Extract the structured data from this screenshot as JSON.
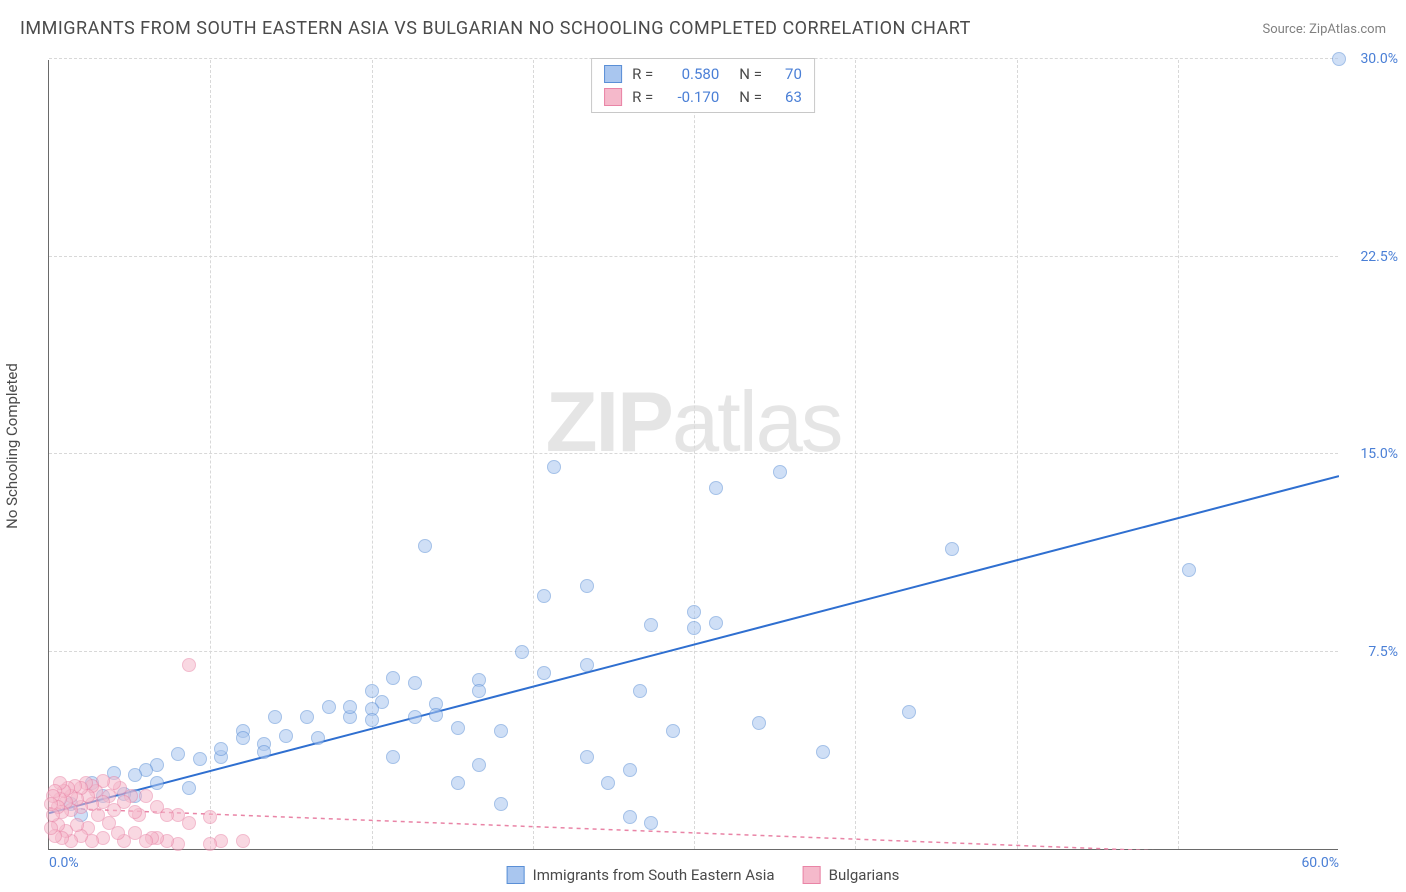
{
  "title": "IMMIGRANTS FROM SOUTH EASTERN ASIA VS BULGARIAN NO SCHOOLING COMPLETED CORRELATION CHART",
  "source_prefix": "Source: ",
  "source": "ZipAtlas.com",
  "watermark_a": "ZIP",
  "watermark_b": "atlas",
  "ylabel": "No Schooling Completed",
  "chart": {
    "type": "scatter",
    "xlim": [
      0,
      60
    ],
    "ylim": [
      0,
      30
    ],
    "xtick_step": 7.5,
    "ytick_step": 7.5,
    "xtick_labels": [
      "0.0%",
      "60.0%"
    ],
    "ytick_labels": [
      "7.5%",
      "15.0%",
      "22.5%",
      "30.0%"
    ],
    "grid_color": "#d8d8d8",
    "axis_color": "#6a6a6a",
    "background": "#ffffff",
    "marker_radius": 7,
    "marker_opacity": 0.55,
    "series": [
      {
        "id": "sea",
        "label": "Immigrants from South Eastern Asia",
        "fill": "#a9c6ef",
        "stroke": "#5a8fd6",
        "R": "0.580",
        "N": "70",
        "trend": {
          "color": "#2f6fd0",
          "dash": "none",
          "width": 2,
          "y_at_x0": 1.4,
          "y_at_x60": 14.2
        },
        "points": [
          [
            60,
            30
          ],
          [
            53,
            10.6
          ],
          [
            42,
            11.4
          ],
          [
            40,
            5.2
          ],
          [
            36,
            3.7
          ],
          [
            34,
            14.3
          ],
          [
            33,
            4.8
          ],
          [
            31,
            13.7
          ],
          [
            31,
            8.6
          ],
          [
            30,
            8.4
          ],
          [
            30,
            9.0
          ],
          [
            29,
            4.5
          ],
          [
            28,
            8.5
          ],
          [
            28,
            1.0
          ],
          [
            27.5,
            6.0
          ],
          [
            27,
            3.0
          ],
          [
            27,
            1.2
          ],
          [
            26,
            2.5
          ],
          [
            25,
            7.0
          ],
          [
            25,
            10
          ],
          [
            25,
            3.5
          ],
          [
            23.5,
            14.5
          ],
          [
            23,
            6.7
          ],
          [
            23,
            9.6
          ],
          [
            22,
            7.5
          ],
          [
            21,
            1.7
          ],
          [
            21,
            4.5
          ],
          [
            20,
            6.4
          ],
          [
            20,
            3.2
          ],
          [
            20,
            6.0
          ],
          [
            19,
            4.6
          ],
          [
            19,
            2.5
          ],
          [
            18,
            5.5
          ],
          [
            18,
            5.1
          ],
          [
            17.5,
            11.5
          ],
          [
            17,
            6.3
          ],
          [
            17,
            5.0
          ],
          [
            16,
            6.5
          ],
          [
            16,
            3.5
          ],
          [
            15.5,
            5.6
          ],
          [
            15,
            5.3
          ],
          [
            15,
            4.9
          ],
          [
            15,
            6.0
          ],
          [
            14,
            5.0
          ],
          [
            14,
            5.4
          ],
          [
            13,
            5.4
          ],
          [
            12.5,
            4.2
          ],
          [
            12,
            5.0
          ],
          [
            11,
            4.3
          ],
          [
            10.5,
            5.0
          ],
          [
            10,
            4.0
          ],
          [
            10,
            3.7
          ],
          [
            9,
            4.5
          ],
          [
            9,
            4.2
          ],
          [
            8,
            3.5
          ],
          [
            8,
            3.8
          ],
          [
            7,
            3.4
          ],
          [
            6.5,
            2.3
          ],
          [
            6,
            3.6
          ],
          [
            5,
            2.5
          ],
          [
            5,
            3.2
          ],
          [
            4.5,
            3.0
          ],
          [
            4,
            2.0
          ],
          [
            4,
            2.8
          ],
          [
            3,
            2.9
          ],
          [
            3.5,
            2.1
          ],
          [
            2.5,
            2.0
          ],
          [
            2,
            2.5
          ],
          [
            1.5,
            1.3
          ],
          [
            1,
            1.7
          ]
        ]
      },
      {
        "id": "bul",
        "label": "Bulgarians",
        "fill": "#f5b9cb",
        "stroke": "#e984a6",
        "R": "-0.170",
        "N": "63",
        "trend": {
          "color": "#e984a6",
          "dash": "4,4",
          "width": 1.5,
          "y_at_x0": 1.6,
          "y_at_x60": -0.3
        },
        "points": [
          [
            6.5,
            7.0
          ],
          [
            9,
            0.3
          ],
          [
            8,
            0.3
          ],
          [
            7.5,
            0.2
          ],
          [
            7.5,
            1.2
          ],
          [
            6.5,
            1.0
          ],
          [
            6,
            0.2
          ],
          [
            6,
            1.3
          ],
          [
            5.5,
            0.3
          ],
          [
            5.5,
            1.3
          ],
          [
            5,
            0.4
          ],
          [
            5,
            1.6
          ],
          [
            4.8,
            0.4
          ],
          [
            4.5,
            0.3
          ],
          [
            4.5,
            2.0
          ],
          [
            4.2,
            1.3
          ],
          [
            4,
            0.6
          ],
          [
            4,
            1.4
          ],
          [
            3.8,
            2.0
          ],
          [
            3.5,
            0.3
          ],
          [
            3.5,
            1.8
          ],
          [
            3.3,
            2.3
          ],
          [
            3.2,
            0.6
          ],
          [
            3,
            2.5
          ],
          [
            3,
            1.5
          ],
          [
            2.8,
            1.0
          ],
          [
            2.8,
            2.0
          ],
          [
            2.5,
            0.4
          ],
          [
            2.5,
            1.8
          ],
          [
            2.5,
            2.6
          ],
          [
            2.3,
            1.3
          ],
          [
            2.2,
            2.2
          ],
          [
            2,
            0.3
          ],
          [
            2,
            1.7
          ],
          [
            2,
            2.4
          ],
          [
            1.8,
            0.8
          ],
          [
            1.8,
            2.0
          ],
          [
            1.7,
            2.5
          ],
          [
            1.5,
            0.5
          ],
          [
            1.5,
            1.6
          ],
          [
            1.5,
            2.3
          ],
          [
            1.3,
            0.9
          ],
          [
            1.3,
            1.9
          ],
          [
            1.2,
            2.4
          ],
          [
            1,
            0.3
          ],
          [
            1,
            1.5
          ],
          [
            1,
            2.0
          ],
          [
            0.9,
            2.3
          ],
          [
            0.8,
            0.7
          ],
          [
            0.8,
            1.8
          ],
          [
            0.7,
            2.2
          ],
          [
            0.6,
            0.4
          ],
          [
            0.6,
            1.4
          ],
          [
            0.5,
            1.9
          ],
          [
            0.5,
            2.5
          ],
          [
            0.4,
            0.9
          ],
          [
            0.4,
            1.6
          ],
          [
            0.3,
            2.2
          ],
          [
            0.3,
            0.5
          ],
          [
            0.2,
            1.3
          ],
          [
            0.2,
            2.0
          ],
          [
            0.1,
            0.8
          ],
          [
            0.1,
            1.7
          ]
        ]
      }
    ],
    "legend_top": {
      "r_label": "R =",
      "n_label": "N =",
      "value_color": "#4a7fd6",
      "text_color": "#4a4a4a"
    }
  }
}
